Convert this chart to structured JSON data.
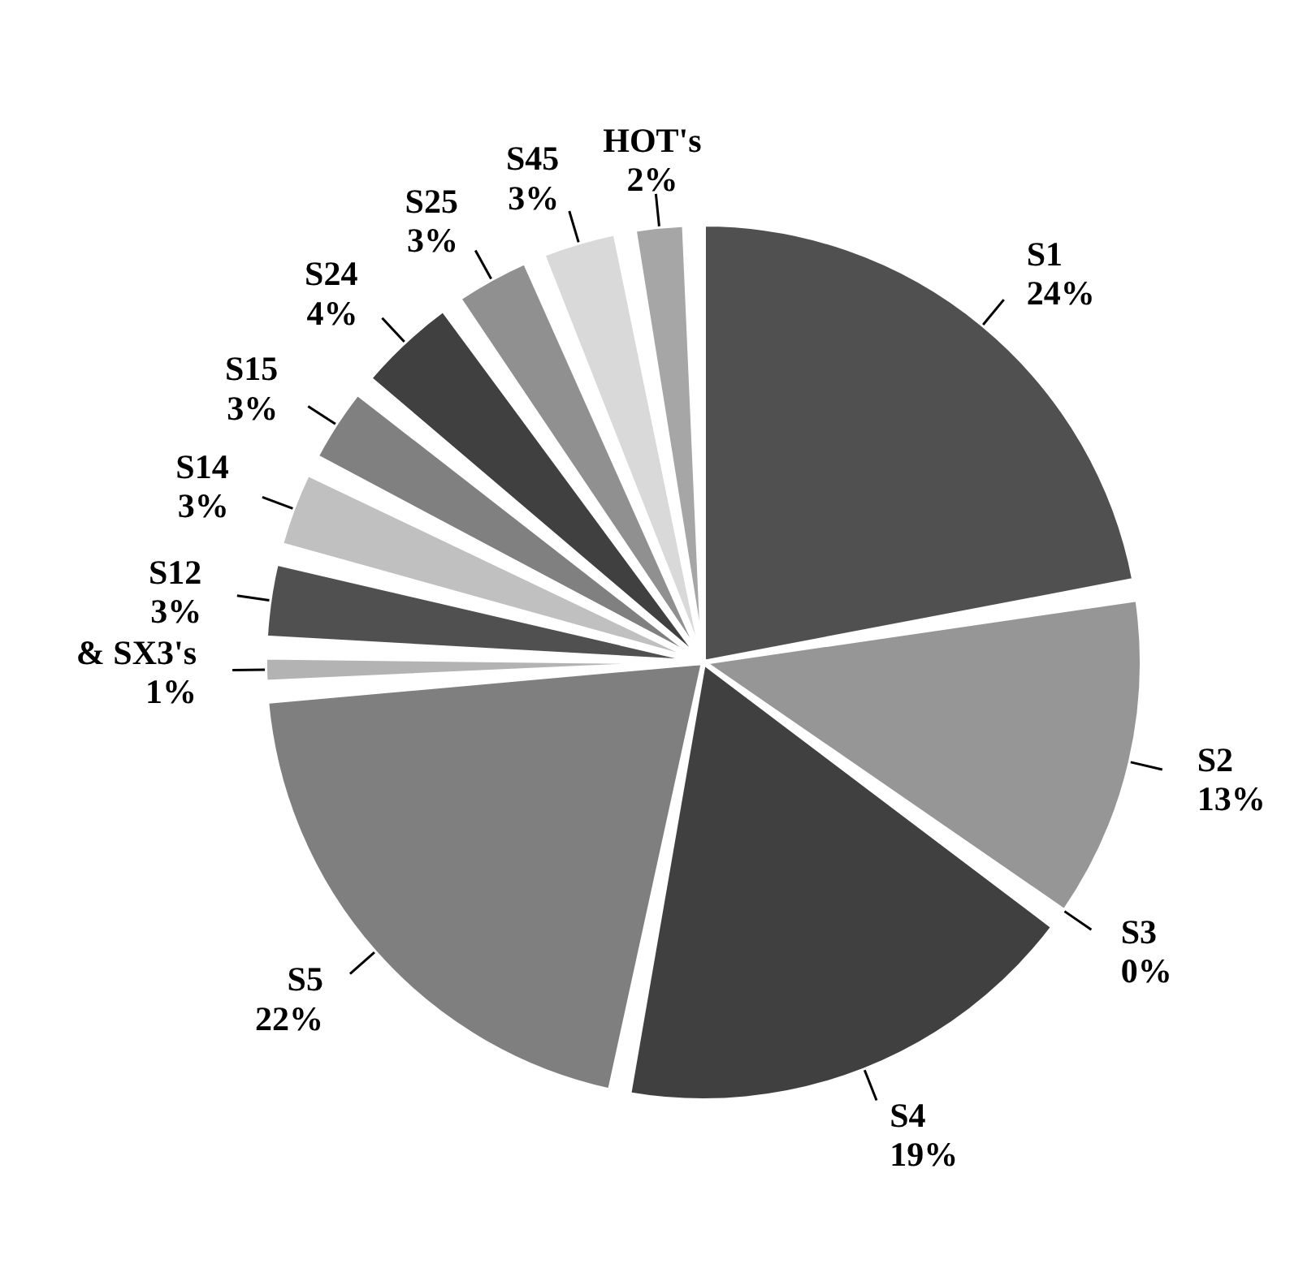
{
  "chart_data": {
    "type": "pie",
    "categories": [
      "S1",
      "S2",
      "S3",
      "S4",
      "S5",
      "& SX3's",
      "S12",
      "S14",
      "S15",
      "S24",
      "S25",
      "S45",
      "HOT's"
    ],
    "values": [
      24,
      13,
      0,
      19,
      22,
      1,
      3,
      3,
      3,
      4,
      3,
      3,
      2
    ],
    "value_labels": [
      "24%",
      "13%",
      "0%",
      "19%",
      "22%",
      "1%",
      "3%",
      "3%",
      "3%",
      "4%",
      "3%",
      "3%",
      "2%"
    ],
    "colors": [
      "#505050",
      "#969696",
      "#707070",
      "#404040",
      "#7f7f7f",
      "#b3b3b3",
      "#505050",
      "#c0c0c0",
      "#808080",
      "#404040",
      "#909090",
      "#d9d9d9",
      "#a6a6a6"
    ]
  }
}
